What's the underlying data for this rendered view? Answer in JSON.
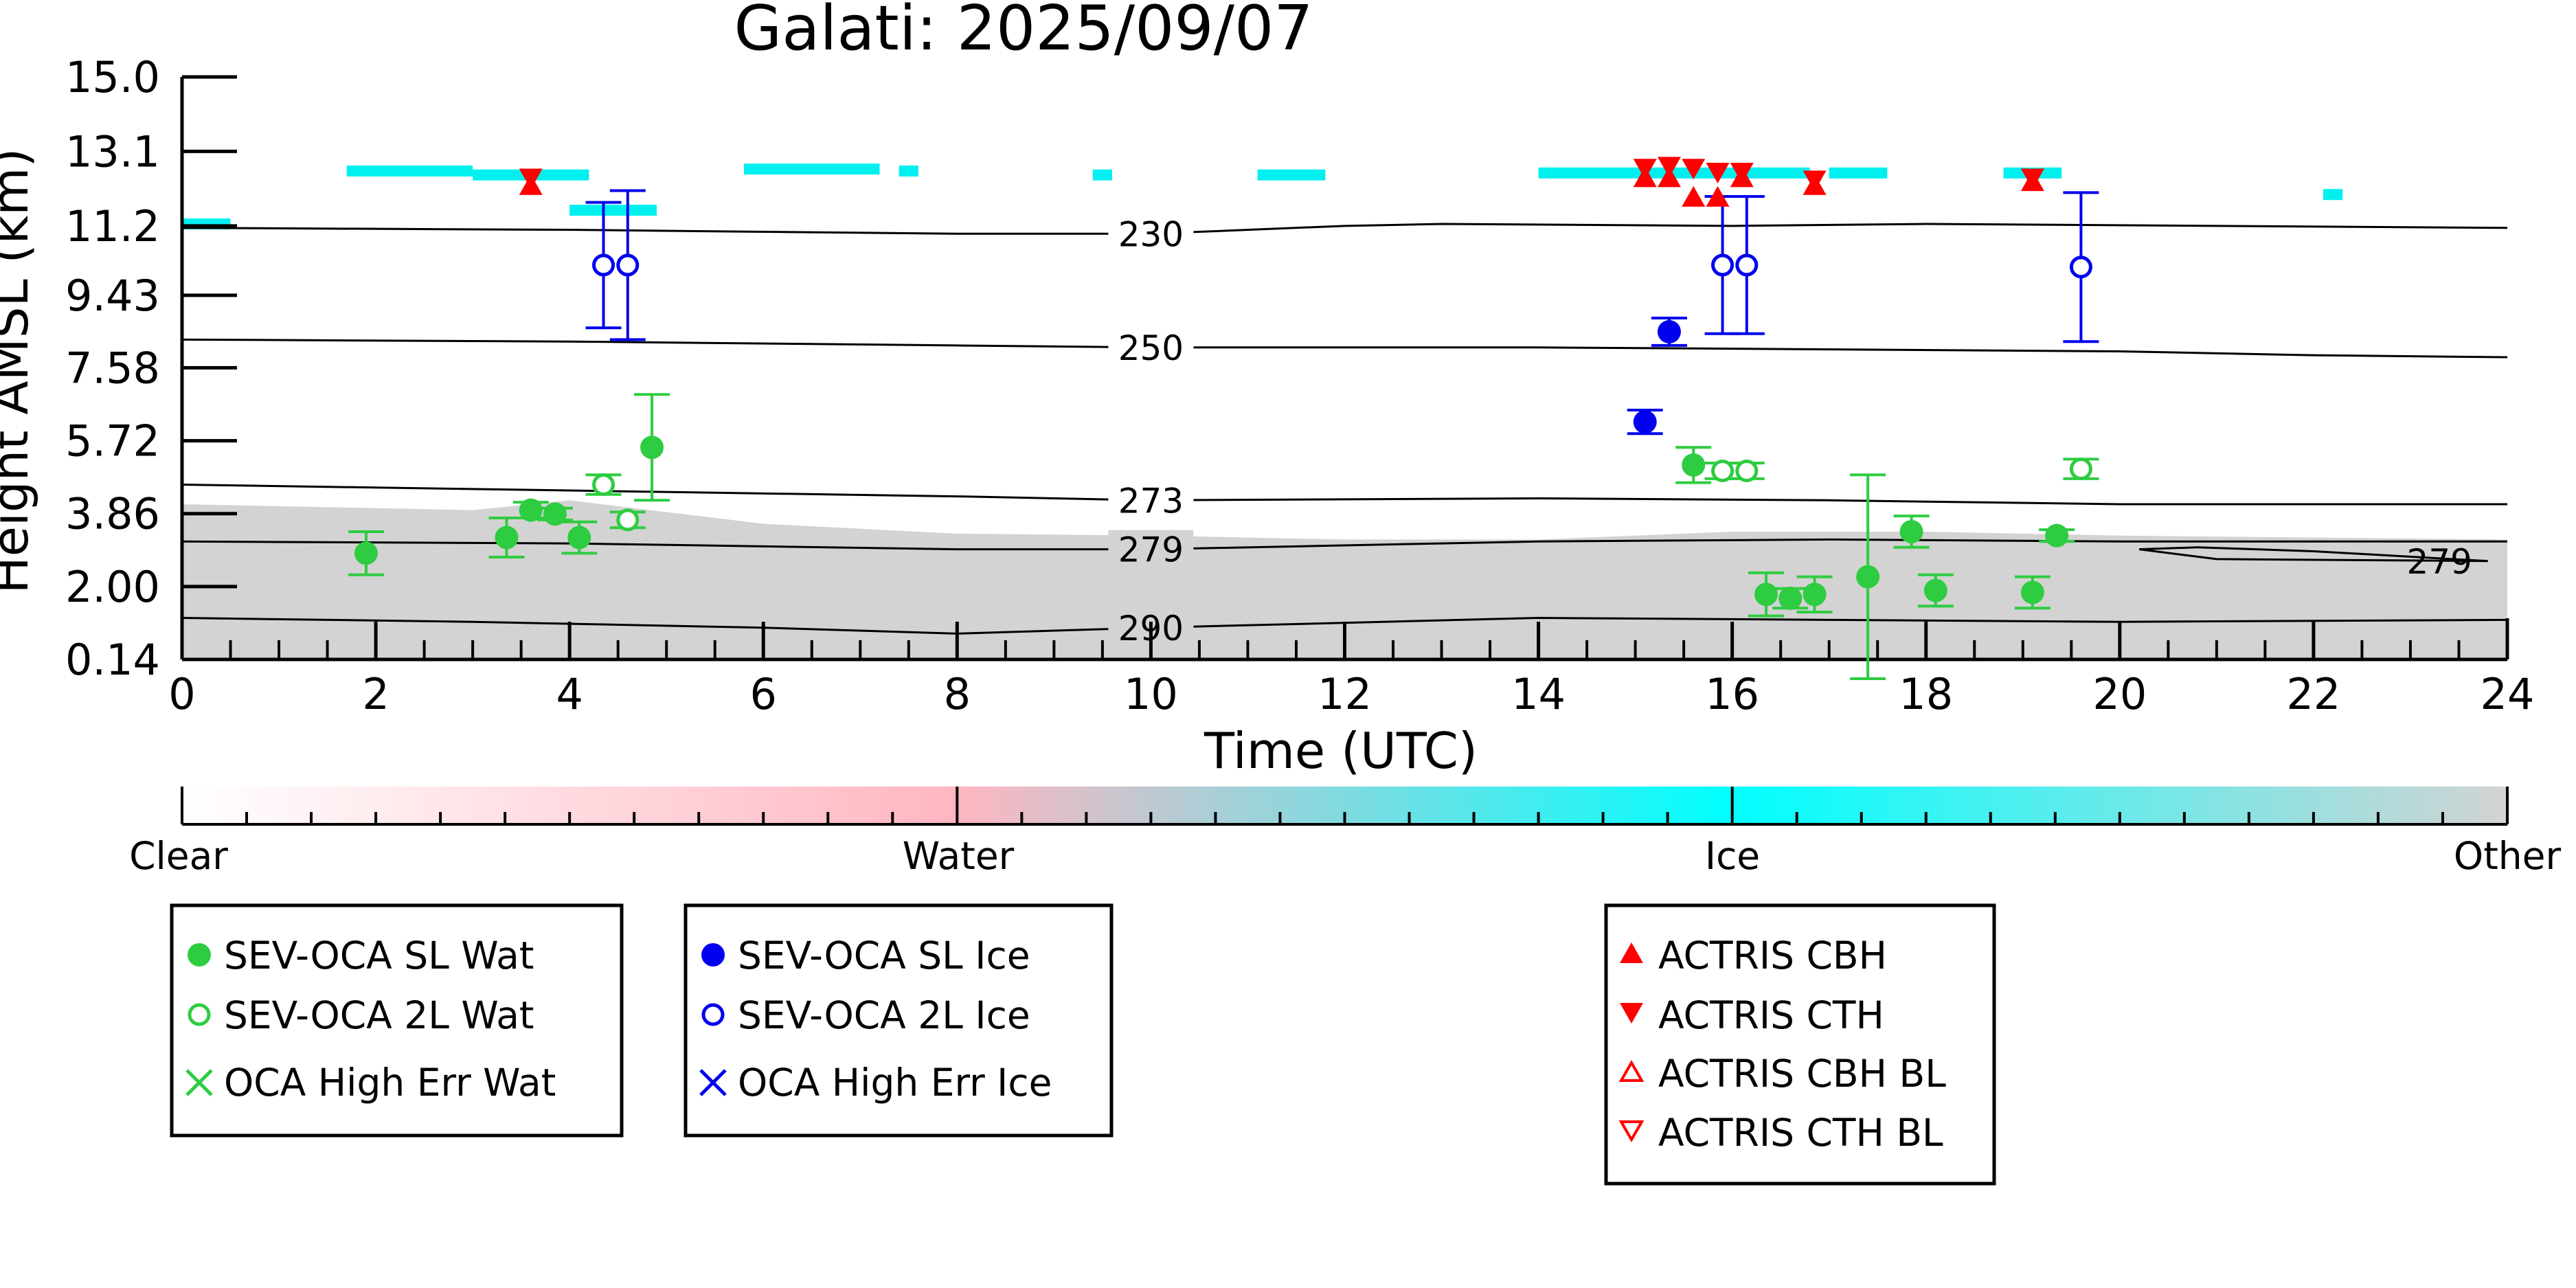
{
  "chart_data": {
    "type": "scatter",
    "title": "Galati: 2025/09/07",
    "xlabel": "Time (UTC)",
    "ylabel": "Height AMSL (km)",
    "xlim": [
      0,
      24
    ],
    "ylim": [
      0.14,
      15.0
    ],
    "x_ticks": [
      "0",
      "2",
      "4",
      "6",
      "8",
      "10",
      "12",
      "14",
      "16",
      "18",
      "20",
      "22",
      "24"
    ],
    "y_ticks": [
      "0.14",
      "2.00",
      "3.86",
      "5.72",
      "7.58",
      "9.43",
      "11.2",
      "13.1",
      "15.0"
    ],
    "y_tick_values": [
      0.14,
      2.0,
      3.86,
      5.72,
      7.58,
      9.43,
      11.2,
      13.1,
      15.0
    ],
    "colors": {
      "water": "#2ecc40",
      "ice": "#0000ee",
      "actris": "#ff0000",
      "background_cloud": "#d3d3d3",
      "ice_cloud": "#00f0f0"
    },
    "colorbar": {
      "labels": [
        "Clear",
        "Water",
        "Ice",
        "Other"
      ],
      "stops": [
        "#ffffff",
        "#ffb6c1",
        "#00ffff",
        "#d3d3d3"
      ]
    },
    "contours": [
      {
        "label": "230",
        "points": [
          [
            0,
            11.15
          ],
          [
            4,
            11.1
          ],
          [
            8,
            11.0
          ],
          [
            10,
            11.0
          ],
          [
            12,
            11.2
          ],
          [
            13,
            11.25
          ],
          [
            16,
            11.2
          ],
          [
            18,
            11.25
          ],
          [
            24,
            11.15
          ]
        ]
      },
      {
        "label": "250",
        "points": [
          [
            0,
            8.3
          ],
          [
            4,
            8.25
          ],
          [
            8,
            8.15
          ],
          [
            10,
            8.1
          ],
          [
            14,
            8.1
          ],
          [
            17,
            8.05
          ],
          [
            20,
            8.0
          ],
          [
            22,
            7.9
          ],
          [
            24,
            7.85
          ]
        ]
      },
      {
        "label": "273",
        "points": [
          [
            0,
            4.6
          ],
          [
            4,
            4.45
          ],
          [
            8,
            4.3
          ],
          [
            10,
            4.2
          ],
          [
            14,
            4.25
          ],
          [
            17,
            4.2
          ],
          [
            20,
            4.1
          ],
          [
            24,
            4.1
          ]
        ]
      },
      {
        "label": "279",
        "points": [
          [
            0,
            3.15
          ],
          [
            4,
            3.1
          ],
          [
            8,
            2.95
          ],
          [
            10,
            2.95
          ],
          [
            14,
            3.15
          ],
          [
            17,
            3.2
          ],
          [
            20,
            3.15
          ],
          [
            24,
            3.15
          ]
        ]
      },
      {
        "label": "290",
        "points": [
          [
            0,
            1.2
          ],
          [
            3,
            1.1
          ],
          [
            6,
            0.95
          ],
          [
            8,
            0.8
          ],
          [
            10,
            0.95
          ],
          [
            14,
            1.2
          ],
          [
            17,
            1.15
          ],
          [
            20,
            1.1
          ],
          [
            24,
            1.15
          ]
        ]
      }
    ],
    "contour_279_loop": [
      [
        20.2,
        2.95
      ],
      [
        21,
        2.7
      ],
      [
        23.8,
        2.65
      ],
      [
        22,
        2.9
      ],
      [
        20.8,
        3.0
      ],
      [
        20.2,
        2.95
      ]
    ],
    "series": [
      {
        "name": "SEV-OCA SL Wat",
        "marker": "filled-circle",
        "color": "water",
        "points": [
          [
            1.9,
            2.85,
            0.55
          ],
          [
            3.35,
            3.25,
            0.5
          ],
          [
            3.6,
            3.95,
            0.2
          ],
          [
            3.85,
            3.85,
            0.15
          ],
          [
            4.1,
            3.25,
            0.4
          ],
          [
            4.85,
            5.55,
            1.35
          ],
          [
            15.6,
            5.1,
            0.45
          ],
          [
            16.35,
            1.8,
            0.55
          ],
          [
            16.6,
            1.7,
            0.25
          ],
          [
            16.85,
            1.8,
            0.45
          ],
          [
            17.4,
            2.25,
            2.6
          ],
          [
            17.85,
            3.4,
            0.4
          ],
          [
            18.1,
            1.9,
            0.4
          ],
          [
            19.1,
            1.85,
            0.4
          ],
          [
            19.35,
            3.3,
            0.15
          ]
        ]
      },
      {
        "name": "SEV-OCA 2L Wat",
        "marker": "open-circle",
        "color": "water",
        "points": [
          [
            4.35,
            4.6,
            0.25
          ],
          [
            4.6,
            3.7,
            0.2
          ],
          [
            15.9,
            4.95,
            0.2
          ],
          [
            16.15,
            4.95,
            0.2
          ],
          [
            19.6,
            5.0,
            0.25
          ]
        ]
      },
      {
        "name": "OCA High Err Wat",
        "marker": "x",
        "color": "water",
        "points": []
      },
      {
        "name": "SEV-OCA SL Ice",
        "marker": "filled-circle",
        "color": "ice",
        "points": [
          [
            15.35,
            8.5,
            0.35
          ],
          [
            15.1,
            6.2,
            0.3
          ]
        ]
      },
      {
        "name": "SEV-OCA 2L Ice",
        "marker": "open-circle",
        "color": "ice",
        "points": [
          [
            4.35,
            10.2,
            1.6
          ],
          [
            4.6,
            10.2,
            1.9
          ],
          [
            15.9,
            10.2,
            1.75
          ],
          [
            16.15,
            10.2,
            1.75
          ],
          [
            19.6,
            10.15,
            1.9
          ]
        ]
      },
      {
        "name": "OCA High Err Ice",
        "marker": "x",
        "color": "ice",
        "points": []
      },
      {
        "name": "ACTRIS CBH",
        "marker": "filled-triangle-up",
        "color": "actris",
        "points": [
          [
            3.6,
            12.2
          ],
          [
            15.1,
            12.4
          ],
          [
            15.35,
            12.4
          ],
          [
            15.6,
            11.9
          ],
          [
            15.85,
            11.9
          ],
          [
            16.1,
            12.4
          ],
          [
            16.85,
            12.2
          ],
          [
            19.1,
            12.3
          ]
        ]
      },
      {
        "name": "ACTRIS CTH",
        "marker": "filled-triangle-down",
        "color": "actris",
        "points": [
          [
            3.6,
            12.45
          ],
          [
            15.1,
            12.7
          ],
          [
            15.35,
            12.75
          ],
          [
            15.6,
            12.7
          ],
          [
            15.85,
            12.6
          ],
          [
            16.1,
            12.6
          ],
          [
            16.85,
            12.4
          ],
          [
            19.1,
            12.45
          ]
        ]
      },
      {
        "name": "ACTRIS CBH BL",
        "marker": "open-triangle-up",
        "color": "actris",
        "points": []
      },
      {
        "name": "ACTRIS CTH BL",
        "marker": "open-triangle-down",
        "color": "actris",
        "points": []
      }
    ],
    "legend_groups": [
      [
        "SEV-OCA SL Wat",
        "SEV-OCA 2L Wat",
        "OCA High Err Wat"
      ],
      [
        "SEV-OCA SL Ice",
        "SEV-OCA 2L Ice",
        "OCA High Err Ice"
      ],
      [
        "ACTRIS CBH",
        "ACTRIS CTH",
        "ACTRIS CBH BL",
        "ACTRIS CTH BL"
      ]
    ]
  }
}
